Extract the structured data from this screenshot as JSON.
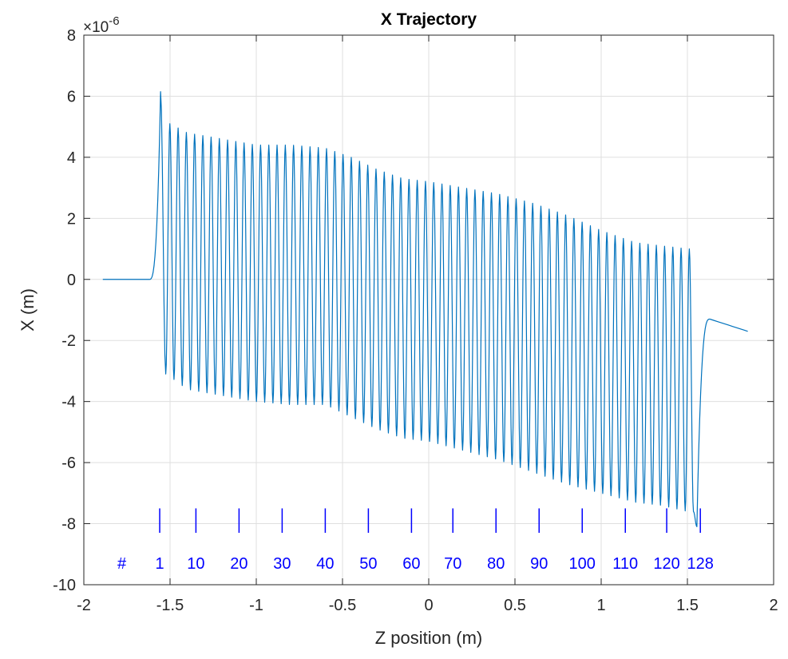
{
  "chart_data": {
    "type": "line",
    "title": "X Trajectory",
    "xlabel": "Z position (m)",
    "ylabel": "X (m)",
    "exponent_label": "×10",
    "exponent_power": "-6",
    "xlim": [
      -2,
      2
    ],
    "ylim": [
      -10,
      8
    ],
    "xticks": [
      "-2",
      "-1.5",
      "-1",
      "-0.5",
      "0",
      "0.5",
      "1",
      "1.5",
      "2"
    ],
    "yticks": [
      "-10",
      "-8",
      "-6",
      "-4",
      "-2",
      "0",
      "2",
      "4",
      "6",
      "8"
    ],
    "grid": true,
    "series": [
      {
        "color": "#0072BD",
        "trajectory": {
          "z_start": -1.89,
          "flat_end": -1.6,
          "first_peak_z": -1.555,
          "first_peak_x": 6.15,
          "period_count": 64,
          "osc_start": -1.535,
          "osc_end": 1.535,
          "exit_min_z": 1.555,
          "exit_min_x": -8.1,
          "exit_recover_z": 1.63,
          "exit_recover_x": -1.3,
          "z_end": 1.85,
          "x_end": -1.7
        },
        "upper_envelope": {
          "z": [
            -1.5,
            -1.4,
            -1.2,
            -1.0,
            -0.8,
            -0.6,
            -0.45,
            -0.3,
            -0.15,
            0.0,
            0.2,
            0.4,
            0.6,
            0.8,
            1.0,
            1.2,
            1.35,
            1.5
          ],
          "x": [
            5.1,
            4.8,
            4.6,
            4.4,
            4.4,
            4.3,
            4.0,
            3.6,
            3.3,
            3.2,
            3.0,
            2.8,
            2.5,
            2.1,
            1.6,
            1.2,
            1.1,
            1.0
          ]
        },
        "lower_envelope": {
          "z": [
            -1.52,
            -1.4,
            -1.2,
            -1.0,
            -0.8,
            -0.6,
            -0.45,
            -0.3,
            -0.15,
            0.0,
            0.2,
            0.4,
            0.6,
            0.8,
            1.0,
            1.2,
            1.35,
            1.5
          ],
          "x": [
            -3.1,
            -3.6,
            -3.8,
            -4.0,
            -4.1,
            -4.1,
            -4.5,
            -4.9,
            -5.2,
            -5.3,
            -5.6,
            -5.9,
            -6.3,
            -6.7,
            -7.0,
            -7.3,
            -7.4,
            -7.6
          ]
        }
      }
    ],
    "annotation": {
      "color": "#0000FF",
      "marker_top": -7.5,
      "marker_bottom": -8.3,
      "label_y": -9.3,
      "hash_label": "#",
      "hash_z": -1.78,
      "markers": [
        {
          "z": -1.56,
          "label": "1"
        },
        {
          "z": -1.35,
          "label": "10"
        },
        {
          "z": -1.1,
          "label": "20"
        },
        {
          "z": -0.85,
          "label": "30"
        },
        {
          "z": -0.6,
          "label": "40"
        },
        {
          "z": -0.35,
          "label": "50"
        },
        {
          "z": -0.1,
          "label": "60"
        },
        {
          "z": 0.14,
          "label": "70"
        },
        {
          "z": 0.39,
          "label": "80"
        },
        {
          "z": 0.64,
          "label": "90"
        },
        {
          "z": 0.89,
          "label": "100"
        },
        {
          "z": 1.14,
          "label": "110"
        },
        {
          "z": 1.38,
          "label": "120"
        },
        {
          "z": 1.575,
          "label": "128"
        }
      ]
    }
  }
}
